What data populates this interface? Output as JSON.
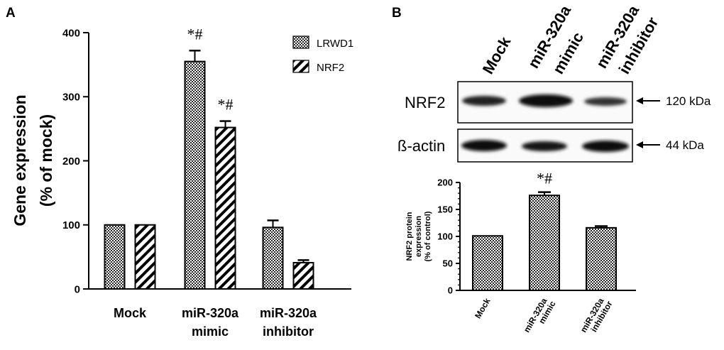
{
  "chart_data": [
    {
      "panel": "A",
      "type": "bar",
      "categories": [
        "Mock",
        "miR-320a mimic",
        "miR-320a inhibitor"
      ],
      "category_lines": [
        [
          "Mock"
        ],
        [
          "miR-320a",
          "mimic"
        ],
        [
          "miR-320a",
          "inhibitor"
        ]
      ],
      "ylabel_lines": [
        "Gene expression",
        "(% of mock)"
      ],
      "ylim": [
        0,
        400
      ],
      "yticks": [
        0,
        100,
        200,
        300,
        400
      ],
      "legend_position": "top-right",
      "series": [
        {
          "name": "LRWD1",
          "pattern": "checker",
          "values": [
            100,
            355,
            96
          ],
          "errors": [
            0,
            17,
            11
          ],
          "annotations": [
            "",
            "*#",
            ""
          ]
        },
        {
          "name": "NRF2",
          "pattern": "diagonal",
          "values": [
            100,
            252,
            41
          ],
          "errors": [
            0,
            10,
            4
          ],
          "annotations": [
            "",
            "*#",
            ""
          ]
        }
      ]
    },
    {
      "panel": "B",
      "type": "bar",
      "categories": [
        "Mock",
        "miR-320a mimic",
        "miR-320a inhibitor"
      ],
      "category_lines": [
        [
          "Mock"
        ],
        [
          "miR-320a",
          "mimic"
        ],
        [
          "miR-320a",
          "inhibitor"
        ]
      ],
      "ylabel_lines": [
        "NRF2 protein",
        "expression",
        "(% of control)"
      ],
      "ylim": [
        0,
        200
      ],
      "yticks": [
        0,
        50,
        100,
        150,
        200
      ],
      "series": [
        {
          "pattern": "checker",
          "values": [
            101,
            176,
            116
          ],
          "errors": [
            0,
            6,
            3
          ],
          "annotations": [
            "",
            "*#",
            ""
          ]
        }
      ]
    }
  ],
  "panel_labels": {
    "a": "A",
    "b": "B"
  },
  "blot": {
    "lanes": [
      [
        "Mock"
      ],
      [
        "miR-320a",
        "mimic"
      ],
      [
        "miR-320a",
        "inhibitor"
      ]
    ],
    "rows": [
      {
        "label": "NRF2",
        "size": "120 kDa"
      },
      {
        "label": "ß-actin",
        "size": "44 kDa"
      }
    ]
  }
}
